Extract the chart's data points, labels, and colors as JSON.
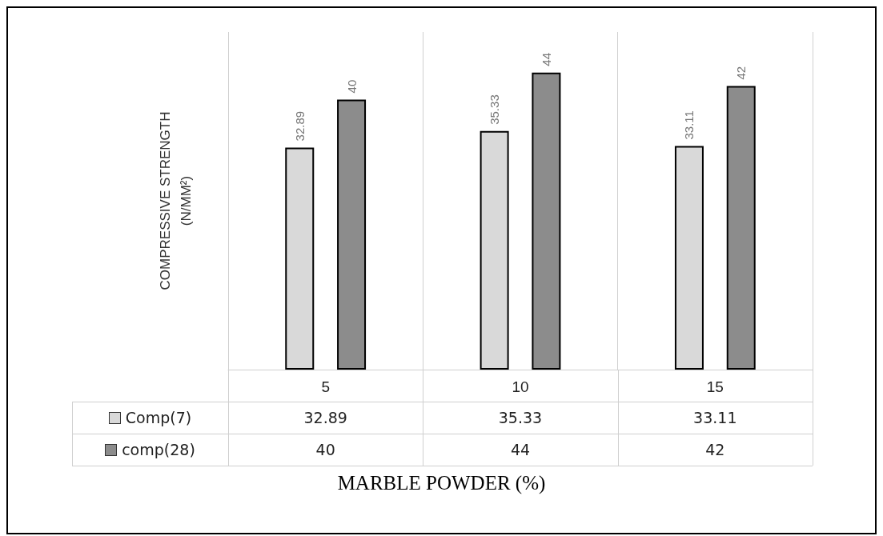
{
  "chart_data": {
    "type": "bar",
    "xlabel": "MARBLE POWDER (%)",
    "ylabel": "COMPRESSIVE STRENGTH\n(N/MM²)",
    "categories": [
      "5",
      "10",
      "15"
    ],
    "series": [
      {
        "name": "Comp(7)",
        "color": "#d9d9d9",
        "values": [
          32.89,
          35.33,
          33.11
        ]
      },
      {
        "name": "comp(28)",
        "color": "#8c8c8c",
        "values": [
          40,
          44,
          42
        ]
      }
    ],
    "annotations": [
      "32.89",
      "35.33",
      "33.11",
      "40",
      "44",
      "42"
    ],
    "data_labels": true,
    "grid": "x",
    "legend": "bottom left"
  }
}
